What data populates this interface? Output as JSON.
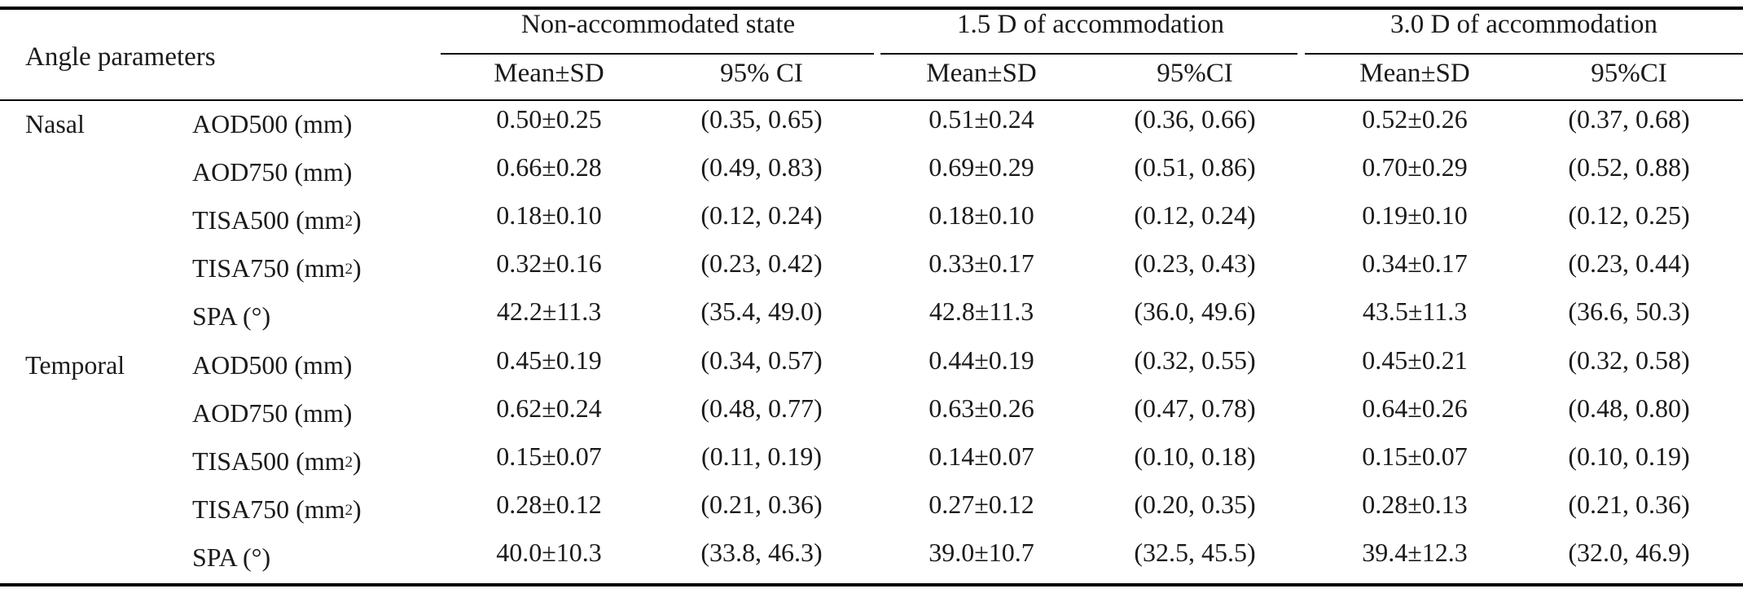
{
  "table": {
    "header": {
      "angle_parameters": "Angle parameters",
      "groups": [
        "Non-accommodated state",
        "1.5 D of accommodation",
        "3.0 D of accommodation"
      ],
      "subheaders": [
        "Mean±SD",
        "95% CI",
        "Mean±SD",
        "95%CI",
        "Mean±SD",
        "95%CI"
      ]
    },
    "sections": [
      {
        "name": "Nasal",
        "rows": [
          {
            "param": "AOD500 (mm)",
            "sup": "",
            "suffix": "",
            "values": [
              "0.50±0.25",
              "(0.35, 0.65)",
              "0.51±0.24",
              "(0.36, 0.66)",
              "0.52±0.26",
              "(0.37, 0.68)"
            ]
          },
          {
            "param": "AOD750 (mm)",
            "sup": "",
            "suffix": "",
            "values": [
              "0.66±0.28",
              "(0.49, 0.83)",
              "0.69±0.29",
              "(0.51, 0.86)",
              "0.70±0.29",
              "(0.52, 0.88)"
            ]
          },
          {
            "param": "TISA500 (mm",
            "sup": "2",
            "suffix": ")",
            "values": [
              "0.18±0.10",
              "(0.12, 0.24)",
              "0.18±0.10",
              "(0.12, 0.24)",
              "0.19±0.10",
              "(0.12, 0.25)"
            ]
          },
          {
            "param": "TISA750 (mm",
            "sup": "2",
            "suffix": ")",
            "values": [
              "0.32±0.16",
              "(0.23, 0.42)",
              "0.33±0.17",
              "(0.23, 0.43)",
              "0.34±0.17",
              "(0.23, 0.44)"
            ]
          },
          {
            "param": "SPA (°)",
            "sup": "",
            "suffix": "",
            "values": [
              "42.2±11.3",
              "(35.4, 49.0)",
              "42.8±11.3",
              "(36.0, 49.6)",
              "43.5±11.3",
              "(36.6, 50.3)"
            ]
          }
        ]
      },
      {
        "name": "Temporal",
        "rows": [
          {
            "param": "AOD500 (mm)",
            "sup": "",
            "suffix": "",
            "values": [
              "0.45±0.19",
              "(0.34, 0.57)",
              "0.44±0.19",
              "(0.32, 0.55)",
              "0.45±0.21",
              "(0.32, 0.58)"
            ]
          },
          {
            "param": "AOD750 (mm)",
            "sup": "",
            "suffix": "",
            "values": [
              "0.62±0.24",
              "(0.48, 0.77)",
              "0.63±0.26",
              "(0.47, 0.78)",
              "0.64±0.26",
              "(0.48, 0.80)"
            ]
          },
          {
            "param": "TISA500 (mm",
            "sup": "2",
            "suffix": ")",
            "values": [
              "0.15±0.07",
              "(0.11, 0.19)",
              "0.14±0.07",
              "(0.10, 0.18)",
              "0.15±0.07",
              "(0.10, 0.19)"
            ]
          },
          {
            "param": "TISA750 (mm",
            "sup": "2",
            "suffix": ")",
            "values": [
              "0.28±0.12",
              "(0.21, 0.36)",
              "0.27±0.12",
              "(0.20, 0.35)",
              "0.28±0.13",
              "(0.21, 0.36)"
            ]
          },
          {
            "param": "SPA (°)",
            "sup": "",
            "suffix": "",
            "values": [
              "40.0±10.3",
              "(33.8, 46.3)",
              "39.0±10.7",
              "(32.5, 45.5)",
              "39.4±12.3",
              "(32.0, 46.9)"
            ]
          }
        ]
      }
    ]
  }
}
